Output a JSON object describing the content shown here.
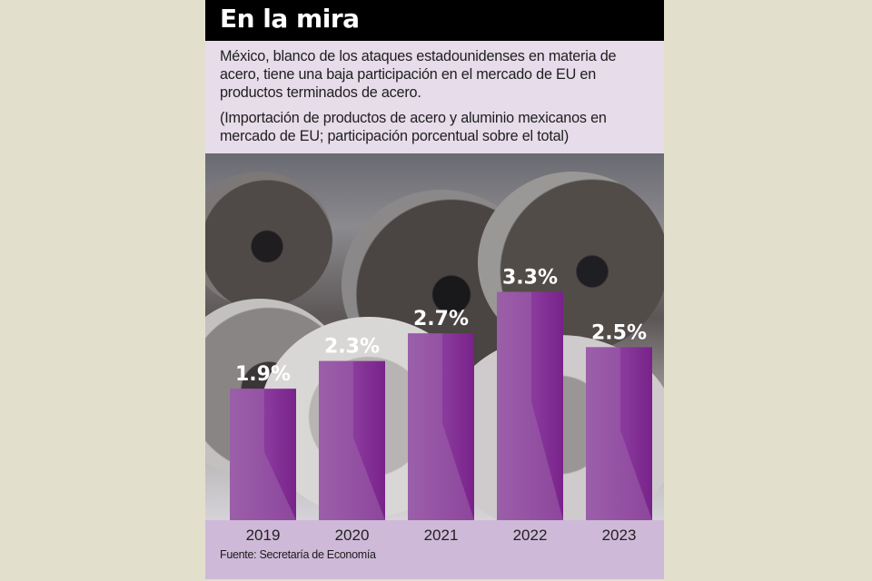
{
  "header": {
    "title": "En la mira"
  },
  "intro": {
    "text": "México, blanco de los ataques estadounidenses en materia de acero, tiene una baja participación en el mercado de EU en productos terminados de acero.",
    "subtitle": "(Importación de productos de acero y aluminio mexicanos en mercado de EU; participación porcentual sobre el total)"
  },
  "source": "Fuente: Secretaría de Economía",
  "colors": {
    "bar": "#8a3a9a",
    "bar_dark": "#7a2188",
    "panel": "#cfb9d8",
    "header": "#000000"
  },
  "chart_data": {
    "type": "bar",
    "title": "En la mira",
    "xlabel": "",
    "ylabel": "",
    "categories": [
      "2019",
      "2020",
      "2021",
      "2022",
      "2023"
    ],
    "values": [
      1.9,
      2.3,
      2.7,
      3.3,
      2.5
    ],
    "labels": [
      "1.9%",
      "2.3%",
      "2.7%",
      "3.3%",
      "2.5%"
    ],
    "ylim": [
      0,
      5.3
    ],
    "grid": false,
    "legend": "none"
  }
}
